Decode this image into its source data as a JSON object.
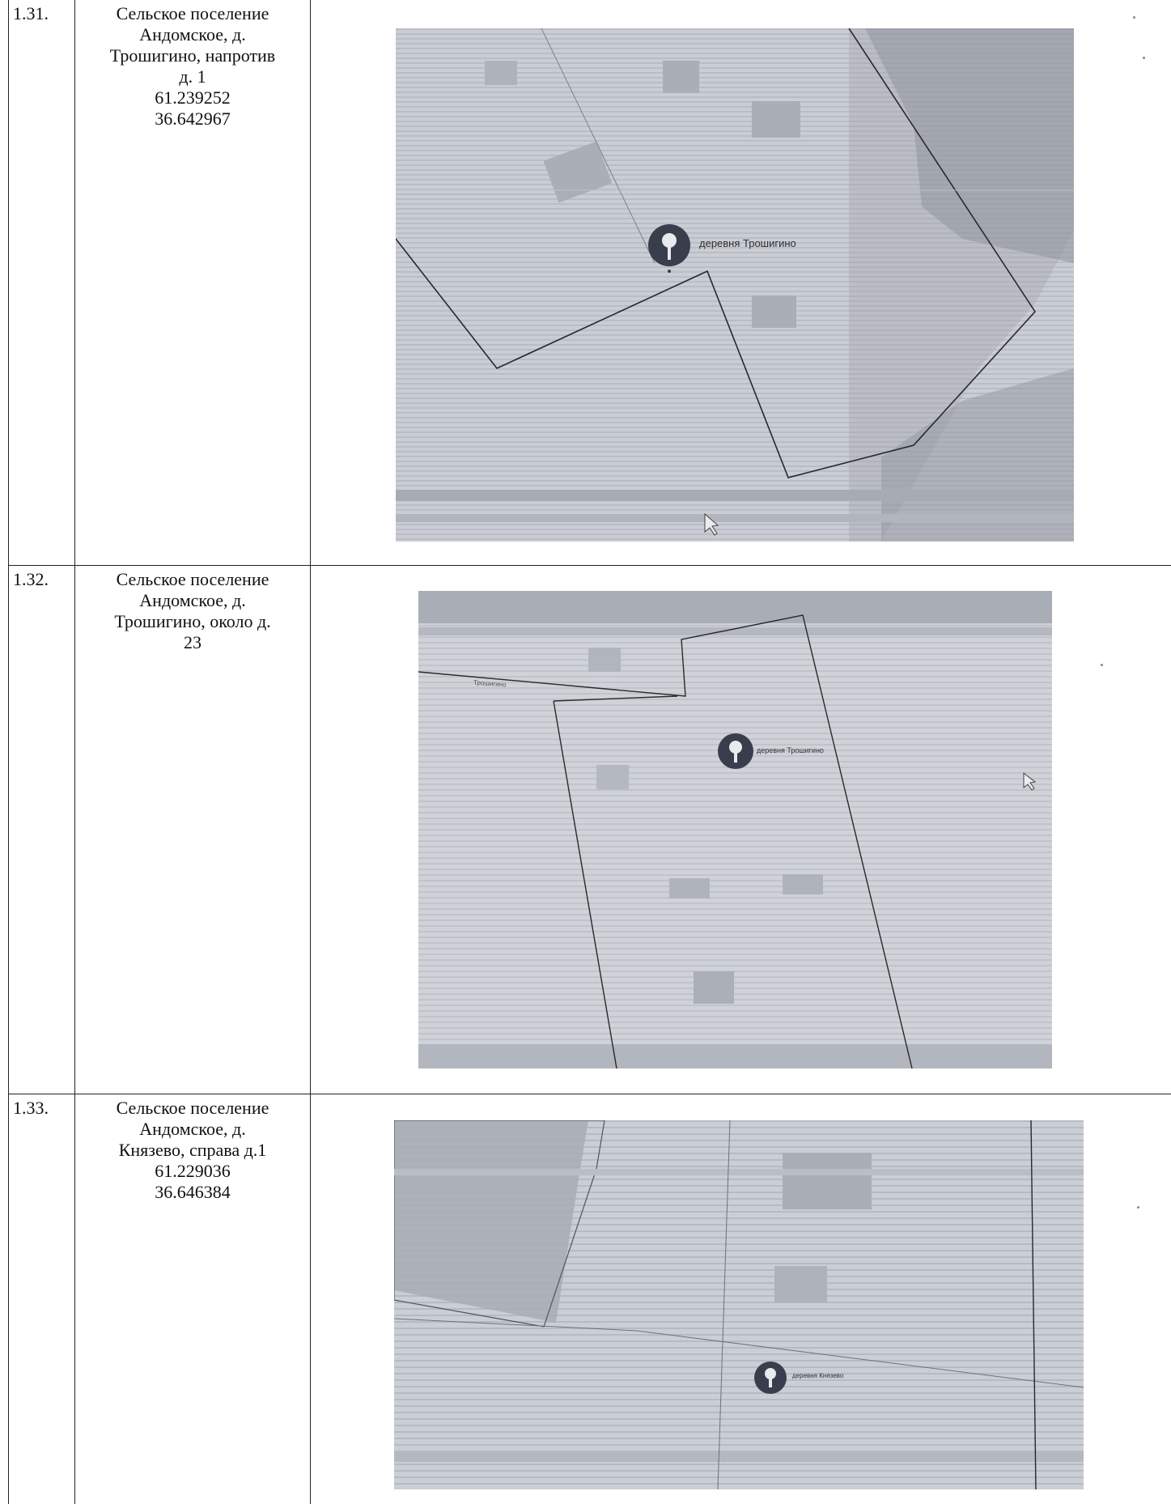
{
  "rows": [
    {
      "number": "1.31.",
      "address_lines": [
        "Сельское поселение",
        "Андомское, д.",
        "Трошигино, напротив",
        "д. 1",
        "61.239252",
        "36.642967"
      ],
      "map": {
        "label": "деревня Трошигино",
        "marker_icon": "map-pin-icon"
      }
    },
    {
      "number": "1.32.",
      "address_lines": [
        "Сельское поселение",
        "Андомское, д.",
        "Трошигино, около д.",
        "23"
      ],
      "map": {
        "label": "деревня Трошигино",
        "side_label": "Трошигино",
        "marker_icon": "map-pin-icon"
      }
    },
    {
      "number": "1.33.",
      "address_lines": [
        "Сельское поселение",
        "Андомское, д.",
        "Князево, справа д.1",
        "61.229036",
        "36.646384"
      ],
      "map": {
        "label": "деревня Князево",
        "marker_icon": "map-pin-icon"
      }
    }
  ],
  "colors": {
    "map_background": "#c9ccd3",
    "map_dark": "#9a9ea8",
    "boundary_line": "#2b2b2b",
    "marker": "#3a3f4e"
  }
}
